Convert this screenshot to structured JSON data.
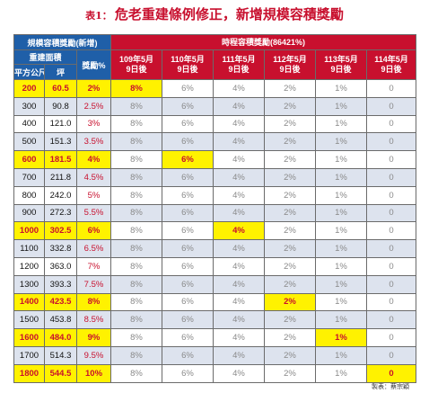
{
  "title": {
    "prefix": "表1：",
    "text": "危老重建條例修正，新增規模容積獎勵"
  },
  "header": {
    "left_group": "規模容積獎勵(新增)",
    "right_group": "時程容積獎勵(86421%)",
    "area_group": "重建面積",
    "col_sqm": "平方公尺",
    "col_ping": "坪",
    "col_reward": "獎勵%",
    "periods": [
      {
        "line1": "109年5月",
        "line2": "9日後"
      },
      {
        "line1": "110年5月",
        "line2": "9日後"
      },
      {
        "line1": "111年5月",
        "line2": "9日後"
      },
      {
        "line1": "112年5月",
        "line2": "9日後"
      },
      {
        "line1": "113年5月",
        "line2": "9日後"
      },
      {
        "line1": "114年5月",
        "line2": "9日後"
      }
    ]
  },
  "rows": [
    {
      "sqm": "200",
      "ping": "60.5",
      "reward": "2%",
      "periods": [
        "8%",
        "6%",
        "4%",
        "2%",
        "1%",
        "0"
      ],
      "hl": [
        0
      ]
    },
    {
      "sqm": "300",
      "ping": "90.8",
      "reward": "2.5%",
      "periods": [
        "8%",
        "6%",
        "4%",
        "2%",
        "1%",
        "0"
      ],
      "hl": []
    },
    {
      "sqm": "400",
      "ping": "121.0",
      "reward": "3%",
      "periods": [
        "8%",
        "6%",
        "4%",
        "2%",
        "1%",
        "0"
      ],
      "hl": []
    },
    {
      "sqm": "500",
      "ping": "151.3",
      "reward": "3.5%",
      "periods": [
        "8%",
        "6%",
        "4%",
        "2%",
        "1%",
        "0"
      ],
      "hl": []
    },
    {
      "sqm": "600",
      "ping": "181.5",
      "reward": "4%",
      "periods": [
        "8%",
        "6%",
        "4%",
        "2%",
        "1%",
        "0"
      ],
      "hl": [
        1
      ]
    },
    {
      "sqm": "700",
      "ping": "211.8",
      "reward": "4.5%",
      "periods": [
        "8%",
        "6%",
        "4%",
        "2%",
        "1%",
        "0"
      ],
      "hl": []
    },
    {
      "sqm": "800",
      "ping": "242.0",
      "reward": "5%",
      "periods": [
        "8%",
        "6%",
        "4%",
        "2%",
        "1%",
        "0"
      ],
      "hl": []
    },
    {
      "sqm": "900",
      "ping": "272.3",
      "reward": "5.5%",
      "periods": [
        "8%",
        "6%",
        "4%",
        "2%",
        "1%",
        "0"
      ],
      "hl": []
    },
    {
      "sqm": "1000",
      "ping": "302.5",
      "reward": "6%",
      "periods": [
        "8%",
        "6%",
        "4%",
        "2%",
        "1%",
        "0"
      ],
      "hl": [
        2
      ]
    },
    {
      "sqm": "1100",
      "ping": "332.8",
      "reward": "6.5%",
      "periods": [
        "8%",
        "6%",
        "4%",
        "2%",
        "1%",
        "0"
      ],
      "hl": []
    },
    {
      "sqm": "1200",
      "ping": "363.0",
      "reward": "7%",
      "periods": [
        "8%",
        "6%",
        "4%",
        "2%",
        "1%",
        "0"
      ],
      "hl": []
    },
    {
      "sqm": "1300",
      "ping": "393.3",
      "reward": "7.5%",
      "periods": [
        "8%",
        "6%",
        "4%",
        "2%",
        "1%",
        "0"
      ],
      "hl": []
    },
    {
      "sqm": "1400",
      "ping": "423.5",
      "reward": "8%",
      "periods": [
        "8%",
        "6%",
        "4%",
        "2%",
        "1%",
        "0"
      ],
      "hl": [
        3
      ]
    },
    {
      "sqm": "1500",
      "ping": "453.8",
      "reward": "8.5%",
      "periods": [
        "8%",
        "6%",
        "4%",
        "2%",
        "1%",
        "0"
      ],
      "hl": []
    },
    {
      "sqm": "1600",
      "ping": "484.0",
      "reward": "9%",
      "periods": [
        "8%",
        "6%",
        "4%",
        "2%",
        "1%",
        "0"
      ],
      "hl": [
        4
      ]
    },
    {
      "sqm": "1700",
      "ping": "514.3",
      "reward": "9.5%",
      "periods": [
        "8%",
        "6%",
        "4%",
        "2%",
        "1%",
        "0"
      ],
      "hl": []
    },
    {
      "sqm": "1800",
      "ping": "544.5",
      "reward": "10%",
      "periods": [
        "8%",
        "6%",
        "4%",
        "2%",
        "1%",
        "0"
      ],
      "hl": [
        5
      ]
    }
  ],
  "highlight_rows": [
    0,
    4,
    8,
    12,
    14,
    16
  ],
  "colors": {
    "header_blue": "#1f5fa8",
    "header_red": "#c8102e",
    "highlight": "#fff200",
    "reward_text": "#c8102e",
    "alt_row": "#dde3ee"
  },
  "credit": "製表：蔡宗穎"
}
